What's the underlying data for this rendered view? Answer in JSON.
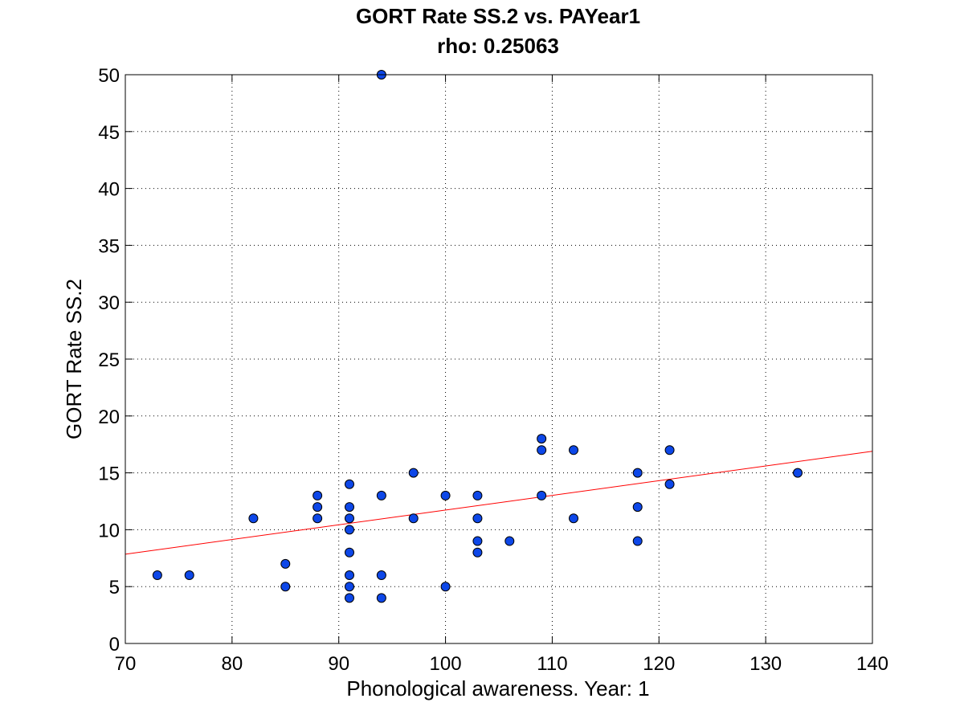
{
  "chart_data": {
    "type": "scatter",
    "title": "GORT Rate SS.2 vs. PAYear1",
    "subtitle": "rho: 0.25063",
    "xlabel": "Phonological awareness. Year: 1",
    "ylabel": "GORT Rate SS.2",
    "xlim": [
      70,
      140
    ],
    "ylim": [
      0,
      50
    ],
    "xticks": [
      70,
      80,
      90,
      100,
      110,
      120,
      130,
      140
    ],
    "yticks": [
      0,
      5,
      10,
      15,
      20,
      25,
      30,
      35,
      40,
      45,
      50
    ],
    "grid": true,
    "legend": "none",
    "colors": {
      "points": "#0d47e8",
      "fit_line": "#ff0000"
    },
    "series": [
      {
        "points": [
          [
            73,
            6
          ],
          [
            76,
            6
          ],
          [
            82,
            11
          ],
          [
            85,
            7
          ],
          [
            85,
            5
          ],
          [
            88,
            13
          ],
          [
            88,
            12
          ],
          [
            88,
            11
          ],
          [
            91,
            14
          ],
          [
            91,
            12
          ],
          [
            91,
            11
          ],
          [
            91,
            10
          ],
          [
            91,
            8
          ],
          [
            91,
            6
          ],
          [
            91,
            5
          ],
          [
            91,
            4
          ],
          [
            94,
            50
          ],
          [
            94,
            13
          ],
          [
            94,
            6
          ],
          [
            94,
            4
          ],
          [
            97,
            15
          ],
          [
            97,
            11
          ],
          [
            100,
            13
          ],
          [
            100,
            5
          ],
          [
            103,
            13
          ],
          [
            103,
            11
          ],
          [
            103,
            9
          ],
          [
            103,
            8
          ],
          [
            106,
            9
          ],
          [
            109,
            18
          ],
          [
            109,
            17
          ],
          [
            109,
            13
          ],
          [
            112,
            17
          ],
          [
            112,
            11
          ],
          [
            118,
            15
          ],
          [
            118,
            12
          ],
          [
            118,
            9
          ],
          [
            121,
            17
          ],
          [
            121,
            14
          ],
          [
            133,
            15
          ]
        ]
      }
    ],
    "fit_line": {
      "x": [
        70,
        140
      ],
      "y": [
        7.85,
        16.9
      ]
    }
  }
}
